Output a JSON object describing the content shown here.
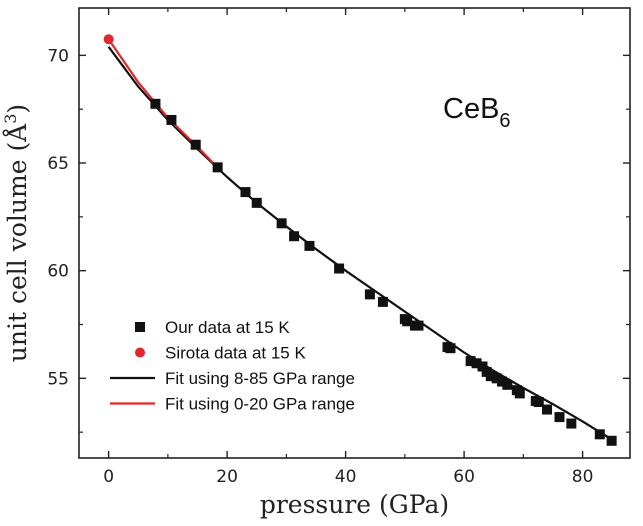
{
  "chart_data": {
    "type": "scatter",
    "xlabel": "pressure (GPa)",
    "ylabel_main": "unit cell volume (",
    "ylabel_unit": "Å",
    "ylabel_sup": "3",
    "ylabel_close": ")",
    "xlim": [
      -5,
      88
    ],
    "ylim": [
      51.3,
      72.2
    ],
    "xticks": [
      0,
      20,
      40,
      60,
      80
    ],
    "yticks": [
      55,
      60,
      65,
      70
    ],
    "annotation": {
      "base": "CeB",
      "sub": "6"
    },
    "series": [
      {
        "name": "Our data at 15 K",
        "kind": "markers",
        "marker": "square",
        "color": "#111111",
        "x": [
          7.9,
          10.6,
          14.7,
          18.4,
          23.1,
          25.0,
          29.2,
          31.3,
          33.9,
          38.9,
          44.1,
          46.3,
          50.0,
          50.4,
          51.7,
          52.3,
          57.2,
          57.7,
          61.1,
          62.1,
          63.1,
          63.8,
          64.5,
          65.5,
          66.4,
          67.3,
          68.9,
          69.4,
          72.1,
          72.6,
          74.0,
          76.1,
          78.1,
          82.9,
          84.9
        ],
        "y": [
          67.75,
          67.0,
          65.85,
          64.8,
          63.65,
          63.15,
          62.2,
          61.6,
          61.15,
          60.1,
          58.9,
          58.55,
          57.75,
          57.65,
          57.45,
          57.45,
          56.45,
          56.4,
          55.8,
          55.7,
          55.55,
          55.3,
          55.1,
          55.0,
          54.85,
          54.7,
          54.45,
          54.3,
          53.95,
          53.9,
          53.55,
          53.2,
          52.9,
          52.4,
          52.1
        ]
      },
      {
        "name": "Sirota data at 15 K",
        "kind": "markers",
        "marker": "circle",
        "color": "#e3262b",
        "x": [
          0
        ],
        "y": [
          70.75
        ]
      },
      {
        "name": "Fit using 8-85 GPa range",
        "kind": "line",
        "color": "#111111",
        "x": [
          0,
          5,
          10,
          15,
          20,
          25,
          30,
          35,
          40,
          45,
          50,
          55,
          60,
          65,
          70,
          75,
          80,
          85
        ],
        "y": [
          70.4,
          68.55,
          67.0,
          65.65,
          64.35,
          63.15,
          62.05,
          61.0,
          60.0,
          59.05,
          58.1,
          57.15,
          56.2,
          55.35,
          54.55,
          53.8,
          53.0,
          52.15
        ]
      },
      {
        "name": "Fit using 0-20 GPa range",
        "kind": "line",
        "color": "#e3262b",
        "x": [
          0,
          5,
          10,
          15,
          18
        ],
        "y": [
          70.75,
          68.75,
          67.1,
          65.75,
          64.9
        ]
      }
    ],
    "legend": {
      "position": "bottom-left"
    }
  }
}
